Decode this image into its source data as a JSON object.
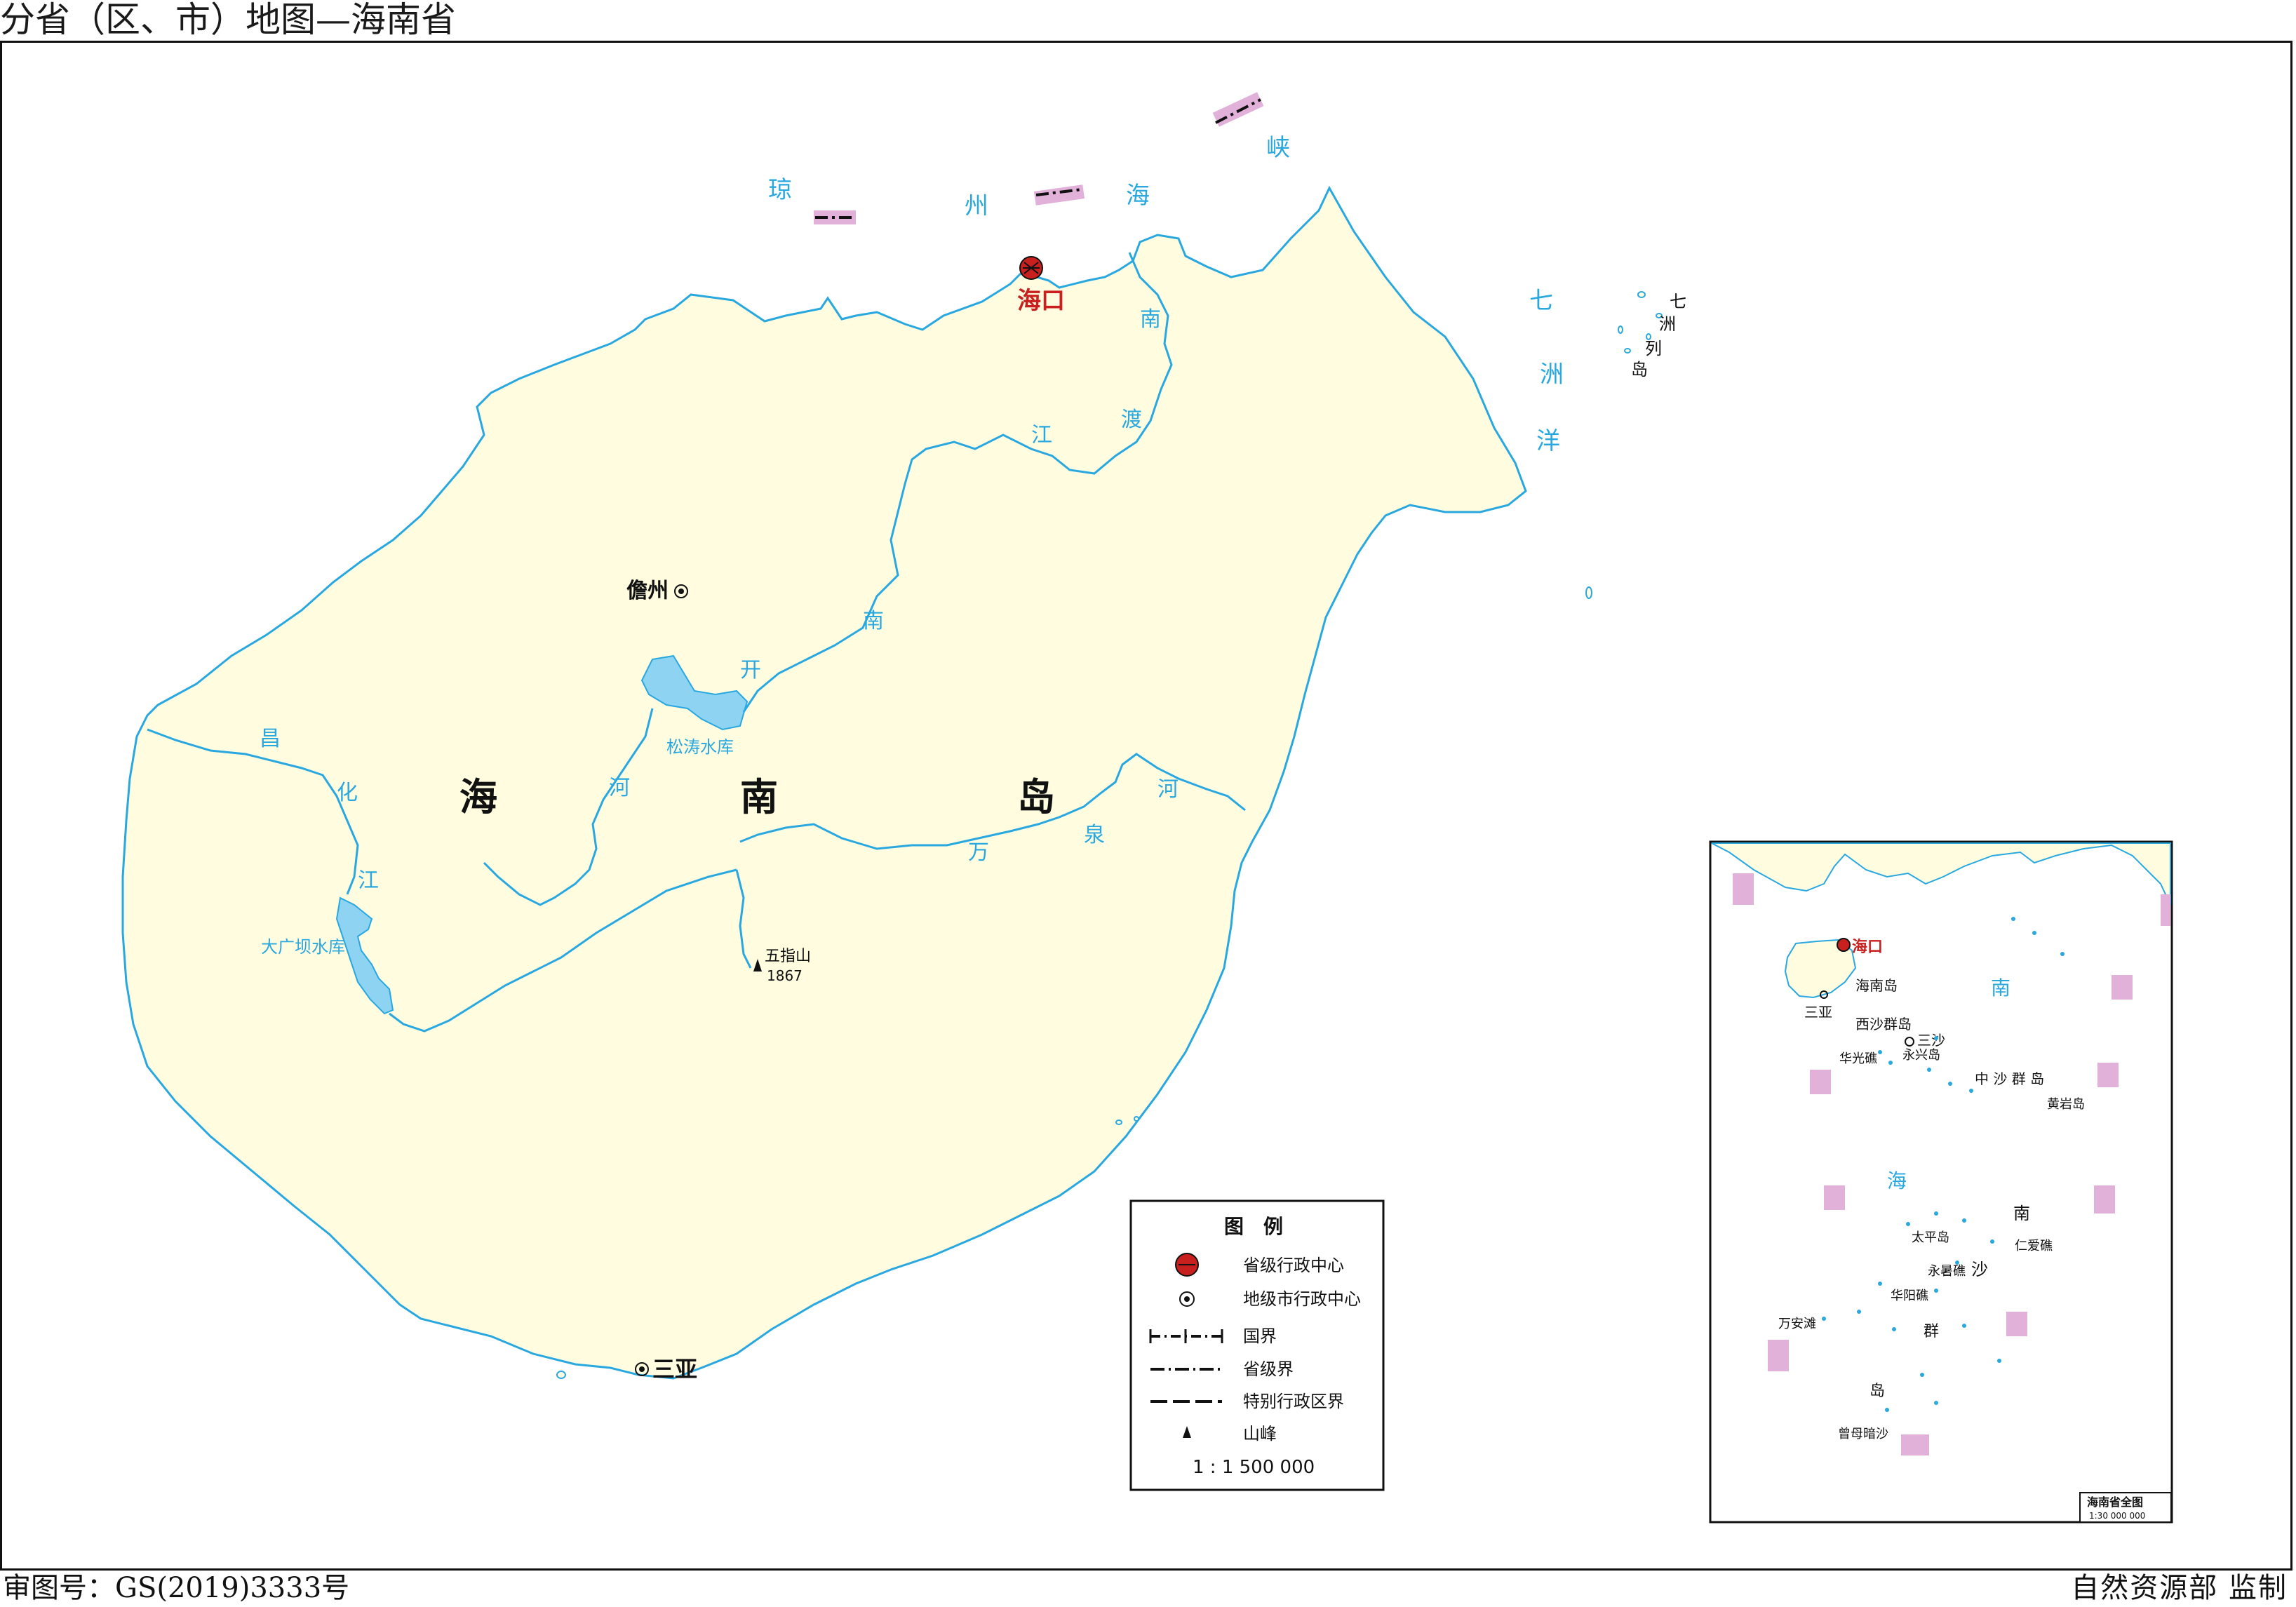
{
  "header": {
    "title": "分省（区、市）地图—海南省"
  },
  "footer": {
    "review_number": "审图号：GS(2019)3333号",
    "supervisor": "自然资源部 监制"
  },
  "map": {
    "capital": "海口",
    "cities": {
      "danzhou": "儋州",
      "sanya": "三亚"
    },
    "island_chars": [
      "海",
      "南",
      "岛"
    ],
    "seas": {
      "qiongzhou": [
        "琼",
        "州",
        "海",
        "峡"
      ],
      "qizhou": [
        "七",
        "洲",
        "洋"
      ]
    },
    "rivers": {
      "nandu": [
        "南",
        "渡",
        "江"
      ],
      "nankai": [
        "南",
        "开",
        "河"
      ],
      "changhua": [
        "昌",
        "化",
        "江"
      ],
      "wanquan": [
        "万",
        "泉",
        "河"
      ]
    },
    "islands": {
      "qizhou_label": [
        "七",
        "洲",
        "列",
        "岛"
      ]
    },
    "reservoirs": {
      "songtao": "松涛水库",
      "daguangba": "大广坝水库"
    },
    "peak": {
      "name": "五指山",
      "elevation": "1867"
    }
  },
  "legend": {
    "title": "图　例",
    "items": [
      {
        "symbol": "provincial-capital",
        "label": "省级行政中心"
      },
      {
        "symbol": "prefecture-city",
        "label": "地级市行政中心"
      },
      {
        "symbol": "national-border",
        "label": "国界"
      },
      {
        "symbol": "provincial-border",
        "label": "省级界"
      },
      {
        "symbol": "special-admin-border",
        "label": "特别行政区界"
      },
      {
        "symbol": "mountain-peak",
        "label": "山峰"
      }
    ],
    "scale": "1 : 1 500 000"
  },
  "inset": {
    "capital": "海口",
    "labels": {
      "hainan_island": "海南岛",
      "sanya": "三亚",
      "xisha": "西沙群岛",
      "sansha": "三沙",
      "yongxing": "永兴岛",
      "huaguang": "华光礁",
      "zhongsha": "中 沙 群 岛",
      "huangyan": "黄岩岛",
      "taiping": "太平岛",
      "renai": "仁爱礁",
      "yongshu": "永暑礁",
      "huayang": "华阳礁",
      "wanan": "万安滩",
      "zengmu": "曾母暗沙",
      "nansha": [
        "群",
        "岛"
      ],
      "sea": [
        "南",
        "海",
        "南",
        "沙"
      ]
    },
    "title": "海南省全图",
    "scale": "1:30 000 000"
  },
  "colors": {
    "land": "#FFFCE0",
    "water": "#29A8E0",
    "lake": "#8FD3F2",
    "capital": "#C8201E",
    "border_pink": "#E2B1DA"
  }
}
